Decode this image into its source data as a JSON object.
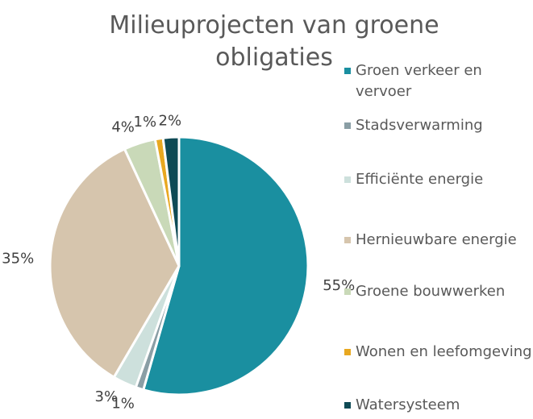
{
  "chart_data": {
    "type": "pie",
    "title": "Milieuprojecten van groene obligaties",
    "categories": [
      "Groen verkeer en vervoer",
      "Stadsverwarming",
      "Efficiënte energie",
      "Hernieuwbare energie",
      "Groene bouwwerken",
      "Wonen en leefomgeving",
      "Watersysteem"
    ],
    "values": [
      55,
      1,
      3,
      35,
      4,
      1,
      2
    ],
    "value_labels": [
      "55%",
      "1%",
      "3%",
      "35%",
      "4%",
      "1%",
      "2%"
    ],
    "colors": [
      "#1a8fa0",
      "#8a9ea5",
      "#cde0dc",
      "#d6c5ad",
      "#c9d9b8",
      "#e8a820",
      "#0e4a55"
    ],
    "legend": "right"
  }
}
